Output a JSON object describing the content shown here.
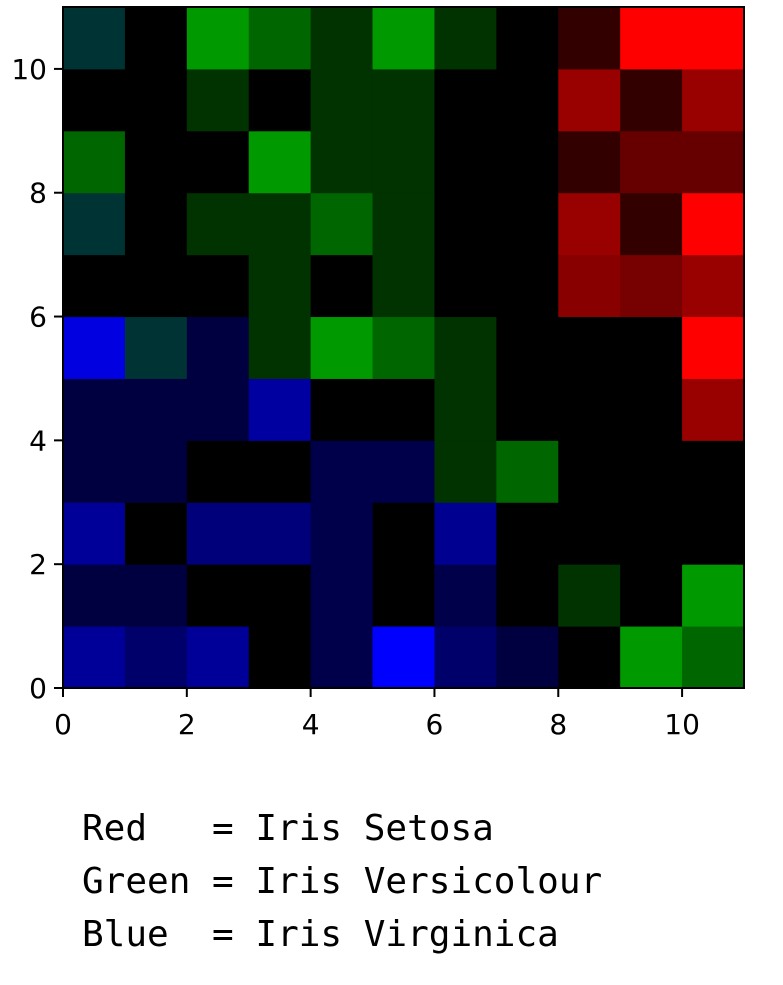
{
  "chart_data": {
    "type": "heatmap",
    "title": "",
    "xlabel": "",
    "ylabel": "",
    "xlim": [
      0,
      11
    ],
    "ylim": [
      0,
      11
    ],
    "x_ticks": [
      "0",
      "2",
      "4",
      "6",
      "8",
      "10"
    ],
    "y_ticks": [
      "0",
      "2",
      "4",
      "6",
      "8",
      "10"
    ],
    "grid": false,
    "encoding": "RGB per cell (row 0 at the bottom)",
    "cells": [
      [
        "#000099",
        "#00006a",
        "#000099",
        "#000000",
        "#00004a",
        "#0000ff",
        "#00006a",
        "#000040",
        "#000000",
        "#009900",
        "#006600"
      ],
      [
        "#000040",
        "#000040",
        "#000000",
        "#000000",
        "#00004a",
        "#000000",
        "#00004a",
        "#000000",
        "#003300",
        "#000000",
        "#009900"
      ],
      [
        "#000099",
        "#000000",
        "#00007a",
        "#00007a",
        "#00004a",
        "#000000",
        "#000090",
        "#000000",
        "#000000",
        "#000000",
        "#000000"
      ],
      [
        "#000040",
        "#000040",
        "#000000",
        "#000000",
        "#00004a",
        "#00004a",
        "#003300",
        "#006600",
        "#000000",
        "#000000",
        "#000000"
      ],
      [
        "#000040",
        "#000040",
        "#000040",
        "#0000a0",
        "#000000",
        "#000000",
        "#003300",
        "#000000",
        "#000000",
        "#000000",
        "#990000"
      ],
      [
        "#0000e0",
        "#003333",
        "#000040",
        "#003300",
        "#009900",
        "#006600",
        "#003300",
        "#000000",
        "#000000",
        "#000000",
        "#ff0000"
      ],
      [
        "#000000",
        "#000000",
        "#000000",
        "#003300",
        "#000000",
        "#003300",
        "#000000",
        "#000000",
        "#880000",
        "#770000",
        "#990000"
      ],
      [
        "#003333",
        "#000000",
        "#003300",
        "#003300",
        "#006600",
        "#003300",
        "#000000",
        "#000000",
        "#990000",
        "#330000",
        "#ff0000"
      ],
      [
        "#006600",
        "#000000",
        "#000000",
        "#009900",
        "#003300",
        "#003300",
        "#000000",
        "#000000",
        "#330000",
        "#660000",
        "#660000"
      ],
      [
        "#000000",
        "#000000",
        "#003300",
        "#000000",
        "#003300",
        "#003300",
        "#000000",
        "#000000",
        "#990000",
        "#330000",
        "#990000"
      ],
      [
        "#003333",
        "#000000",
        "#009900",
        "#006600",
        "#003300",
        "#009900",
        "#003300",
        "#000000",
        "#330000",
        "#ff0000",
        "#ff0000"
      ]
    ]
  },
  "legend": {
    "lines": [
      "Red   = Iris Setosa",
      "Green = Iris Versicolour",
      "Blue  = Iris Virginica"
    ]
  }
}
